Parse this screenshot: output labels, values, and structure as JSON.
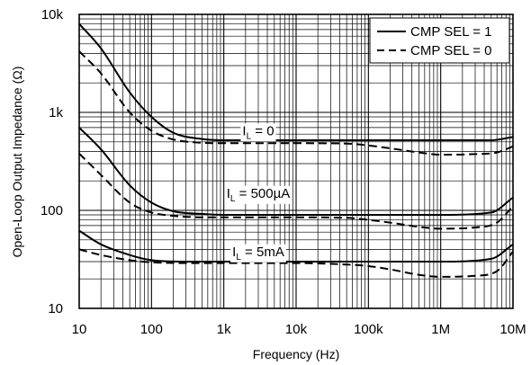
{
  "chart_data": {
    "type": "line",
    "xlabel": "Frequency (Hz)",
    "ylabel": "Open-Loop Output Impedance (Ω)",
    "x_scale": "log",
    "y_scale": "log",
    "xlim": [
      10,
      10000000
    ],
    "ylim": [
      10,
      10000
    ],
    "grid": true,
    "legend_placement": "top-right",
    "x_ticks": [
      {
        "value": 10,
        "label": "10"
      },
      {
        "value": 100,
        "label": "100"
      },
      {
        "value": 1000,
        "label": "1k"
      },
      {
        "value": 10000,
        "label": "10k"
      },
      {
        "value": 100000,
        "label": "100k"
      },
      {
        "value": 1000000,
        "label": "1M"
      },
      {
        "value": 10000000,
        "label": "10M"
      }
    ],
    "y_ticks": [
      {
        "value": 10,
        "label": "10"
      },
      {
        "value": 100,
        "label": "100"
      },
      {
        "value": 1000,
        "label": "1k"
      },
      {
        "value": 10000,
        "label": "10k"
      }
    ],
    "legend": [
      {
        "label": "CMP SEL = 1",
        "style": "solid"
      },
      {
        "label": "CMP SEL = 0",
        "style": "dashed"
      }
    ],
    "annotations": [
      {
        "main": "I",
        "sub": "L",
        "rest": " = 0",
        "x": 3000,
        "y": 650
      },
      {
        "main": "I",
        "sub": "L",
        "rest": " = 500µA",
        "x": 3000,
        "y": 150
      },
      {
        "main": "I",
        "sub": "L",
        "rest": " = 5mA",
        "x": 3000,
        "y": 38
      }
    ],
    "series": [
      {
        "group": "I_L = 0",
        "style": "solid",
        "points": [
          [
            10,
            8000
          ],
          [
            20,
            4500
          ],
          [
            50,
            1600
          ],
          [
            100,
            900
          ],
          [
            200,
            620
          ],
          [
            500,
            535
          ],
          [
            1000,
            520
          ],
          [
            10000,
            520
          ],
          [
            100000,
            520
          ],
          [
            1000000,
            520
          ],
          [
            5000000,
            520
          ],
          [
            10000000,
            560
          ]
        ]
      },
      {
        "group": "I_L = 0",
        "style": "dashed",
        "points": [
          [
            10,
            4200
          ],
          [
            20,
            2500
          ],
          [
            50,
            1000
          ],
          [
            100,
            650
          ],
          [
            200,
            530
          ],
          [
            500,
            490
          ],
          [
            1000,
            485
          ],
          [
            10000,
            485
          ],
          [
            50000,
            480
          ],
          [
            100000,
            460
          ],
          [
            200000,
            430
          ],
          [
            500000,
            390
          ],
          [
            1000000,
            370
          ],
          [
            3000000,
            375
          ],
          [
            6000000,
            390
          ],
          [
            10000000,
            450
          ]
        ]
      },
      {
        "group": "I_L = 500µA",
        "style": "solid",
        "points": [
          [
            10,
            700
          ],
          [
            20,
            420
          ],
          [
            50,
            180
          ],
          [
            100,
            120
          ],
          [
            200,
            98
          ],
          [
            500,
            92
          ],
          [
            1000,
            90
          ],
          [
            10000,
            90
          ],
          [
            100000,
            90
          ],
          [
            1000000,
            90
          ],
          [
            5000000,
            95
          ],
          [
            10000000,
            135
          ]
        ]
      },
      {
        "group": "I_L = 500µA",
        "style": "dashed",
        "points": [
          [
            10,
            380
          ],
          [
            20,
            230
          ],
          [
            50,
            120
          ],
          [
            100,
            95
          ],
          [
            200,
            88
          ],
          [
            500,
            85
          ],
          [
            1000,
            85
          ],
          [
            10000,
            85
          ],
          [
            50000,
            84
          ],
          [
            100000,
            80
          ],
          [
            200000,
            75
          ],
          [
            500000,
            68
          ],
          [
            1000000,
            65
          ],
          [
            3000000,
            67
          ],
          [
            6000000,
            75
          ],
          [
            10000000,
            110
          ]
        ]
      },
      {
        "group": "I_L = 5mA",
        "style": "solid",
        "points": [
          [
            10,
            62
          ],
          [
            20,
            45
          ],
          [
            50,
            35
          ],
          [
            100,
            31
          ],
          [
            300,
            30
          ],
          [
            1000,
            30
          ],
          [
            10000,
            30
          ],
          [
            100000,
            30
          ],
          [
            1000000,
            30
          ],
          [
            5000000,
            32
          ],
          [
            10000000,
            45
          ]
        ]
      },
      {
        "group": "I_L = 5mA",
        "style": "dashed",
        "points": [
          [
            10,
            40
          ],
          [
            20,
            35
          ],
          [
            50,
            31
          ],
          [
            100,
            29.5
          ],
          [
            300,
            29
          ],
          [
            1000,
            29
          ],
          [
            10000,
            29
          ],
          [
            50000,
            28
          ],
          [
            100000,
            27
          ],
          [
            200000,
            25
          ],
          [
            500000,
            22
          ],
          [
            1000000,
            21
          ],
          [
            3000000,
            21.5
          ],
          [
            6000000,
            24
          ],
          [
            10000000,
            38
          ]
        ]
      }
    ]
  }
}
